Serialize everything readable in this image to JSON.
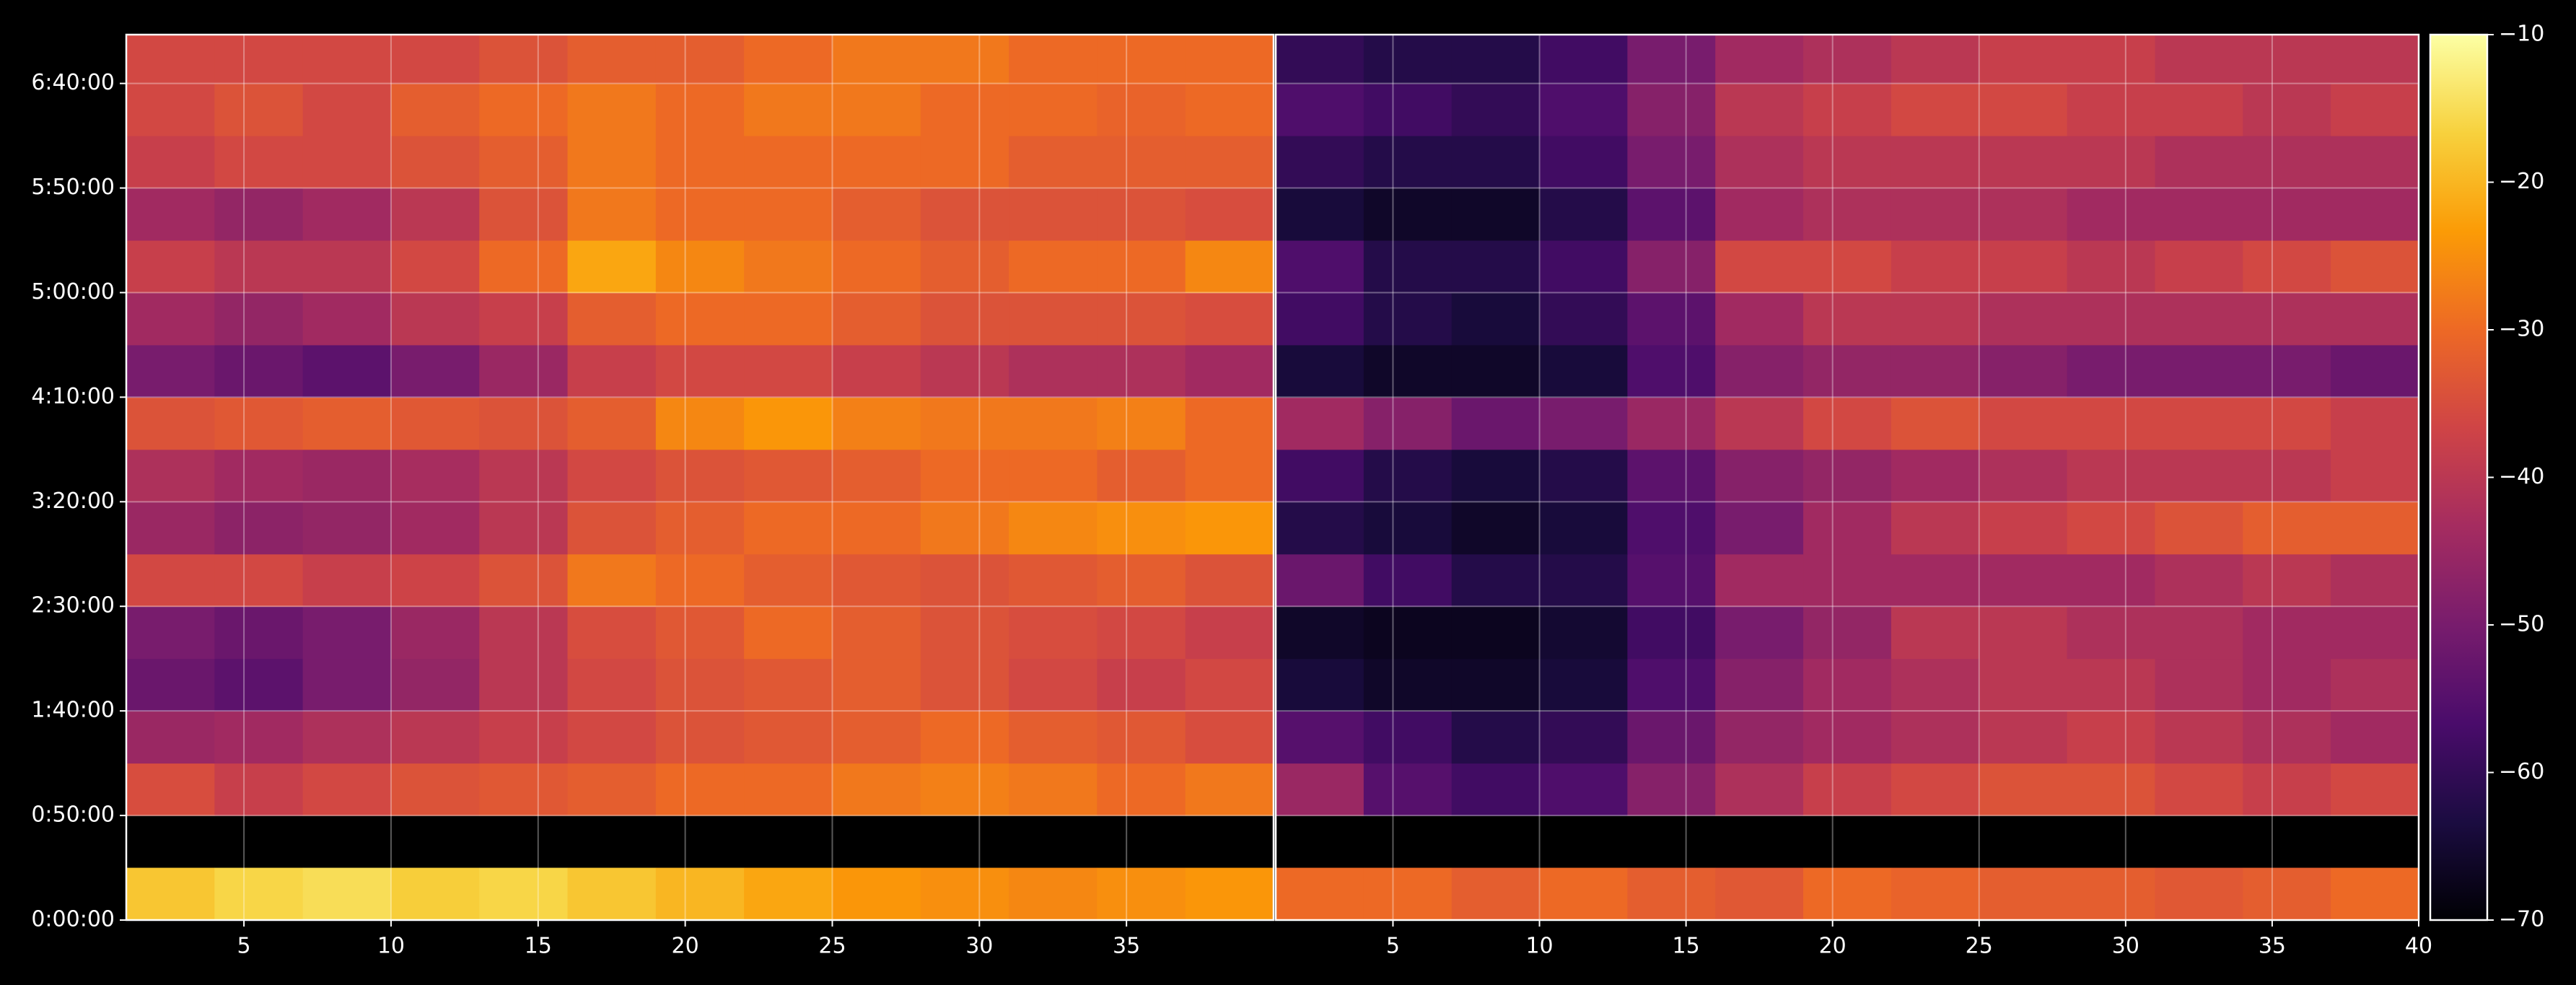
{
  "chart_data": {
    "type": "heatmap",
    "ylim": [
      0,
      25400
    ],
    "y_edges": [
      0,
      1500,
      3000,
      4500,
      6000,
      7500,
      9000,
      10500,
      12000,
      13500,
      15000,
      16500,
      18000,
      19500,
      21000,
      22500,
      24000,
      25400
    ],
    "yticks": [
      {
        "value": 0,
        "label": "0:00:00"
      },
      {
        "value": 3000,
        "label": "0:50:00"
      },
      {
        "value": 6000,
        "label": "1:40:00"
      },
      {
        "value": 9000,
        "label": "2:30:00"
      },
      {
        "value": 12000,
        "label": "3:20:00"
      },
      {
        "value": 15000,
        "label": "4:10:00"
      },
      {
        "value": 18000,
        "label": "5:00:00"
      },
      {
        "value": 21000,
        "label": "5:50:00"
      },
      {
        "value": 24000,
        "label": "6:40:00"
      }
    ],
    "xlim": [
      1,
      40
    ],
    "x_edges": [
      1,
      4,
      7,
      10,
      13,
      16,
      19,
      22,
      25,
      28,
      31,
      34,
      37,
      40
    ],
    "grid": true,
    "zlim": [
      -70,
      -10
    ],
    "colorbar_ticks": [
      {
        "value": -70,
        "label": "−70"
      },
      {
        "value": -60,
        "label": "−60"
      },
      {
        "value": -50,
        "label": "−50"
      },
      {
        "value": -40,
        "label": "−40"
      },
      {
        "value": -30,
        "label": "−30"
      },
      {
        "value": -20,
        "label": "−20"
      },
      {
        "value": -10,
        "label": "−10"
      }
    ],
    "cmap_colors": [
      "#000004",
      "#1b0c41",
      "#4a0c6b",
      "#781c6d",
      "#a52c60",
      "#cf4446",
      "#ed6925",
      "#fb9b06",
      "#f7d13d",
      "#fcffa4"
    ],
    "panels": [
      {
        "xticks": [
          5,
          10,
          15,
          20,
          25,
          30,
          35
        ],
        "values": [
          [
            -18,
            -16,
            -15,
            -17,
            -16,
            -18,
            -20,
            -22,
            -24,
            -25,
            -26,
            -25,
            -24
          ],
          [
            null,
            null,
            null,
            null,
            null,
            null,
            null,
            null,
            null,
            null,
            null,
            null,
            null
          ],
          [
            -35,
            -38,
            -36,
            -34,
            -33,
            -32,
            -30,
            -30,
            -28,
            -27,
            -28,
            -30,
            -28
          ],
          [
            -45,
            -44,
            -42,
            -40,
            -38,
            -36,
            -34,
            -33,
            -32,
            -30,
            -32,
            -33,
            -35
          ],
          [
            -52,
            -54,
            -50,
            -46,
            -40,
            -36,
            -34,
            -33,
            -32,
            -34,
            -36,
            -38,
            -36
          ],
          [
            -50,
            -52,
            -50,
            -45,
            -40,
            -35,
            -33,
            -30,
            -32,
            -34,
            -35,
            -36,
            -38
          ],
          [
            -36,
            -36,
            -38,
            -37,
            -34,
            -28,
            -30,
            -32,
            -33,
            -34,
            -33,
            -32,
            -34
          ],
          [
            -45,
            -47,
            -46,
            -44,
            -40,
            -34,
            -32,
            -30,
            -30,
            -28,
            -26,
            -25,
            -24
          ],
          [
            -42,
            -44,
            -45,
            -43,
            -40,
            -36,
            -34,
            -33,
            -32,
            -30,
            -30,
            -32,
            -30
          ],
          [
            -34,
            -33,
            -32,
            -33,
            -34,
            -32,
            -26,
            -24,
            -27,
            -28,
            -28,
            -27,
            -30
          ],
          [
            -50,
            -52,
            -54,
            -50,
            -45,
            -38,
            -36,
            -36,
            -38,
            -40,
            -42,
            -42,
            -44
          ],
          [
            -44,
            -46,
            -44,
            -40,
            -38,
            -32,
            -30,
            -30,
            -32,
            -34,
            -34,
            -34,
            -35
          ],
          [
            -38,
            -40,
            -40,
            -36,
            -30,
            -22,
            -26,
            -28,
            -30,
            -32,
            -30,
            -30,
            -26
          ],
          [
            -44,
            -46,
            -44,
            -40,
            -34,
            -28,
            -30,
            -30,
            -32,
            -34,
            -34,
            -34,
            -35
          ],
          [
            -38,
            -36,
            -36,
            -34,
            -32,
            -28,
            -30,
            -30,
            -30,
            -30,
            -32,
            -32,
            -32
          ],
          [
            -36,
            -34,
            -36,
            -32,
            -30,
            -28,
            -30,
            -28,
            -28,
            -30,
            -30,
            -31,
            -30
          ],
          [
            -36,
            -36,
            -36,
            -36,
            -34,
            -32,
            -32,
            -30,
            -28,
            -28,
            -30,
            -30,
            -30
          ]
        ]
      },
      {
        "xticks": [
          5,
          10,
          15,
          20,
          25,
          30,
          35,
          40
        ],
        "values": [
          [
            -30,
            -30,
            -32,
            -30,
            -32,
            -33,
            -30,
            -31,
            -32,
            -32,
            -33,
            -32,
            -30
          ],
          [
            null,
            null,
            null,
            null,
            null,
            null,
            null,
            null,
            null,
            null,
            null,
            null,
            null
          ],
          [
            -45,
            -55,
            -58,
            -56,
            -48,
            -42,
            -38,
            -36,
            -34,
            -34,
            -36,
            -38,
            -36
          ],
          [
            -55,
            -58,
            -62,
            -60,
            -52,
            -46,
            -44,
            -42,
            -40,
            -38,
            -40,
            -42,
            -44
          ],
          [
            -64,
            -66,
            -66,
            -64,
            -56,
            -48,
            -44,
            -42,
            -40,
            -40,
            -42,
            -44,
            -42
          ],
          [
            -66,
            -67,
            -67,
            -65,
            -58,
            -50,
            -46,
            -40,
            -40,
            -42,
            -42,
            -44,
            -44
          ],
          [
            -52,
            -58,
            -62,
            -62,
            -55,
            -44,
            -44,
            -44,
            -44,
            -44,
            -42,
            -40,
            -42
          ],
          [
            -62,
            -64,
            -66,
            -64,
            -56,
            -50,
            -44,
            -40,
            -38,
            -36,
            -34,
            -32,
            -32
          ],
          [
            -58,
            -62,
            -64,
            -62,
            -54,
            -48,
            -46,
            -44,
            -42,
            -40,
            -40,
            -40,
            -38
          ],
          [
            -44,
            -48,
            -52,
            -50,
            -45,
            -40,
            -36,
            -34,
            -36,
            -36,
            -36,
            -36,
            -38
          ],
          [
            -64,
            -66,
            -66,
            -64,
            -56,
            -48,
            -46,
            -46,
            -48,
            -50,
            -50,
            -50,
            -52
          ],
          [
            -58,
            -62,
            -64,
            -60,
            -54,
            -44,
            -40,
            -40,
            -42,
            -42,
            -42,
            -42,
            -42
          ],
          [
            -56,
            -62,
            -62,
            -58,
            -48,
            -36,
            -36,
            -38,
            -38,
            -40,
            -38,
            -36,
            -34
          ],
          [
            -64,
            -66,
            -66,
            -62,
            -54,
            -44,
            -42,
            -42,
            -42,
            -44,
            -44,
            -44,
            -44
          ],
          [
            -60,
            -62,
            -62,
            -58,
            -50,
            -42,
            -40,
            -40,
            -40,
            -40,
            -42,
            -42,
            -42
          ],
          [
            -56,
            -58,
            -60,
            -56,
            -48,
            -40,
            -38,
            -36,
            -36,
            -38,
            -38,
            -40,
            -38
          ],
          [
            -60,
            -62,
            -62,
            -58,
            -50,
            -44,
            -42,
            -40,
            -38,
            -38,
            -40,
            -40,
            -40
          ]
        ]
      }
    ]
  }
}
